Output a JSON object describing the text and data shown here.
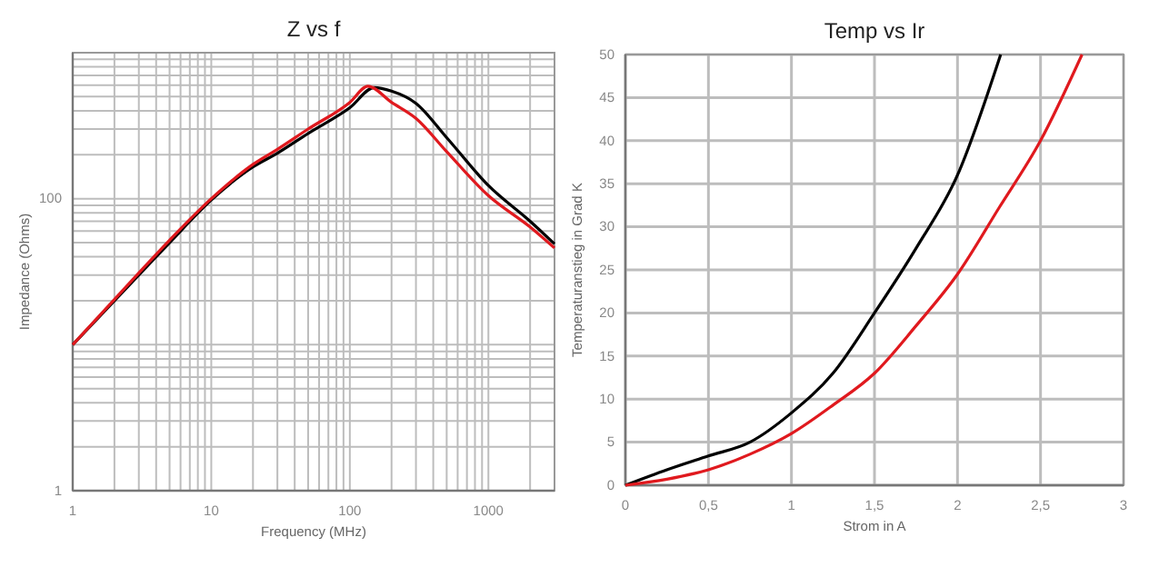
{
  "chart_data": [
    {
      "type": "line",
      "title": "Z vs f",
      "xlabel": "Frequency (MHz)",
      "ylabel": "Impedance (Ohms)",
      "log": "xy",
      "grid": true,
      "line_style": "solid",
      "marker": "none",
      "xlim": [
        1,
        3000
      ],
      "ylim": [
        1,
        1000
      ],
      "xticks": [
        1,
        {
          "value": 2,
          "label": null
        },
        {
          "value": 3,
          "label": null
        },
        {
          "value": 4,
          "label": null
        },
        {
          "value": 5,
          "label": null
        },
        {
          "value": 6,
          "label": null
        },
        {
          "value": 7,
          "label": null
        },
        {
          "value": 8,
          "label": null
        },
        {
          "value": 9,
          "label": null
        },
        10,
        {
          "value": 20,
          "label": null
        },
        {
          "value": 30,
          "label": null
        },
        {
          "value": 40,
          "label": null
        },
        {
          "value": 50,
          "label": null
        },
        {
          "value": 60,
          "label": null
        },
        {
          "value": 70,
          "label": null
        },
        {
          "value": 80,
          "label": null
        },
        {
          "value": 90,
          "label": null
        },
        100,
        {
          "value": 200,
          "label": null
        },
        {
          "value": 300,
          "label": null
        },
        {
          "value": 400,
          "label": null
        },
        {
          "value": 500,
          "label": null
        },
        {
          "value": 600,
          "label": null
        },
        {
          "value": 700,
          "label": null
        },
        {
          "value": 800,
          "label": null
        },
        {
          "value": 900,
          "label": null
        },
        1000,
        {
          "value": 2000,
          "label": null
        }
      ],
      "yticks": [
        1,
        {
          "value": 2,
          "label": null
        },
        {
          "value": 3,
          "label": null
        },
        {
          "value": 4,
          "label": null
        },
        {
          "value": 5,
          "label": null
        },
        {
          "value": 6,
          "label": null
        },
        {
          "value": 7,
          "label": null
        },
        {
          "value": 8,
          "label": null
        },
        {
          "value": 9,
          "label": null
        },
        {
          "value": 10,
          "label": null
        },
        {
          "value": 20,
          "label": null
        },
        {
          "value": 30,
          "label": null
        },
        {
          "value": 40,
          "label": null
        },
        {
          "value": 50,
          "label": null
        },
        {
          "value": 60,
          "label": null
        },
        {
          "value": 70,
          "label": null
        },
        {
          "value": 80,
          "label": null
        },
        {
          "value": 90,
          "label": null
        },
        100,
        {
          "value": 200,
          "label": null
        },
        {
          "value": 300,
          "label": null
        },
        {
          "value": 400,
          "label": null
        },
        {
          "value": 500,
          "label": null
        },
        {
          "value": 600,
          "label": null
        },
        {
          "value": 700,
          "label": null
        },
        {
          "value": 800,
          "label": null
        },
        {
          "value": 900,
          "label": null
        },
        {
          "value": 1000,
          "label": null
        }
      ],
      "series": [
        {
          "color": "#000000",
          "x": [
            1,
            3,
            5,
            10,
            20,
            30,
            50,
            100,
            150,
            200,
            300,
            500,
            1000,
            2000,
            3000
          ],
          "values": [
            10,
            30,
            50,
            98,
            165,
            205,
            280,
            420,
            577,
            545,
            450,
            262,
            123,
            70,
            49
          ]
        },
        {
          "color": "#e0191e",
          "x": [
            1,
            3,
            5,
            10,
            20,
            30,
            50,
            100,
            135,
            200,
            300,
            500,
            1000,
            2000,
            3000
          ],
          "values": [
            10,
            31,
            52,
            100,
            172,
            218,
            300,
            457,
            590,
            457,
            355,
            210,
            105,
            64,
            46
          ]
        }
      ]
    },
    {
      "type": "line",
      "title": "Temp vs Ir",
      "xlabel": "Strom in A",
      "ylabel": "Temperaturanstieg in Grad K",
      "grid": true,
      "line_style": "solid",
      "marker": "none",
      "xlim": [
        0,
        3
      ],
      "ylim": [
        0,
        50
      ],
      "xticks": [
        0,
        {
          "value": 0.5,
          "label": "0,5"
        },
        1,
        {
          "value": 1.5,
          "label": "1,5"
        },
        2,
        {
          "value": 2.5,
          "label": "2,5"
        },
        3
      ],
      "yticks": [
        0,
        5,
        10,
        15,
        20,
        25,
        30,
        35,
        40,
        45,
        50
      ],
      "series": [
        {
          "color": "#000000",
          "x": [
            0,
            0.25,
            0.5,
            0.75,
            1,
            1.25,
            1.5,
            1.75,
            2,
            2.26
          ],
          "values": [
            0,
            1.8,
            3.4,
            5,
            8.4,
            13,
            20,
            27.5,
            36,
            50
          ]
        },
        {
          "color": "#e0191e",
          "x": [
            0,
            0.25,
            0.5,
            0.75,
            1,
            1.25,
            1.5,
            1.75,
            2,
            2.25,
            2.5,
            2.75
          ],
          "values": [
            0,
            0.7,
            1.8,
            3.6,
            6,
            9.3,
            13,
            18.5,
            24.5,
            32.2,
            40,
            50
          ]
        }
      ]
    }
  ]
}
